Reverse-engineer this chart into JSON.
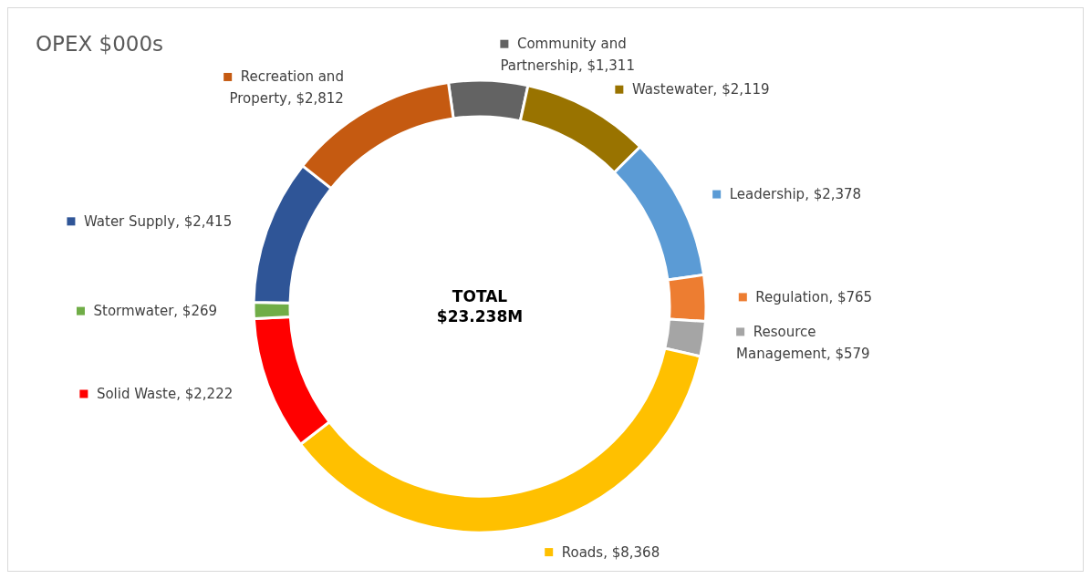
{
  "chart_data": {
    "type": "donut",
    "title": "OPEX $000s",
    "categories": [
      "Community and Partnership",
      "Wastewater",
      "Leadership",
      "Regulation",
      "Resource Management",
      "Roads",
      "Solid Waste",
      "Stormwater",
      "Water Supply",
      "Recreation and Property"
    ],
    "values": [
      1311,
      2119,
      2378,
      765,
      579,
      8368,
      2222,
      269,
      2415,
      2812
    ],
    "value_labels": [
      "$1,311",
      "$2,119",
      "$2,378",
      "$765",
      "$579",
      "$8,368",
      "$2,222",
      "$269",
      "$2,415",
      "$2,812"
    ],
    "colors": [
      "#636363",
      "#997300",
      "#5b9bd5",
      "#ed7d31",
      "#a5a5a5",
      "#ffc000",
      "#ff0000",
      "#70ad47",
      "#2f5597",
      "#c55a11"
    ],
    "annotations": [
      "TOTAL\n$23.238M"
    ],
    "legend": "right"
  }
}
